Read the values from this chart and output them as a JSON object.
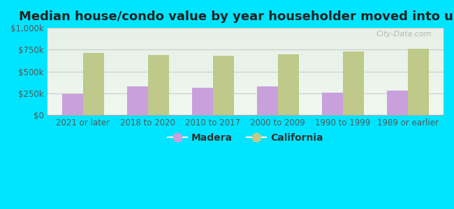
{
  "title": "Median house/condo value by year householder moved into unit",
  "categories": [
    "2021 or later",
    "2018 to 2020",
    "2010 to 2017",
    "2000 to 2009",
    "1990 to 1999",
    "1989 or earlier"
  ],
  "madera_values": [
    240000,
    330000,
    310000,
    330000,
    255000,
    280000
  ],
  "california_values": [
    715000,
    685000,
    680000,
    695000,
    730000,
    760000
  ],
  "madera_color": "#c9a0dc",
  "california_color": "#bec98a",
  "background_color": "#00e5ff",
  "plot_bg_top": "#e8f5e8",
  "plot_bg_bottom": "#d8eedd",
  "ylim": [
    0,
    1000000
  ],
  "yticks": [
    0,
    250000,
    500000,
    750000,
    1000000
  ],
  "ytick_labels": [
    "$0",
    "$250k",
    "$500k",
    "$750k",
    "$1,000k"
  ],
  "legend_madera": "Madera",
  "legend_california": "California",
  "watermark": "City-Data.com",
  "bar_width": 0.32,
  "title_fontsize": 13,
  "tick_fontsize": 8.5,
  "legend_fontsize": 10
}
